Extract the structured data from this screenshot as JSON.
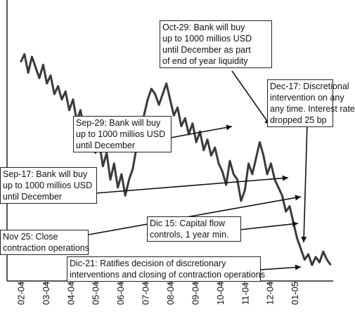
{
  "chart_data": {
    "type": "line",
    "title": "",
    "xlabel": "",
    "ylabel": "",
    "grid": false,
    "x_ticks": [
      "02-04",
      "03-04",
      "04-04",
      "05-04",
      "06-04",
      "07-04",
      "08-04",
      "09-04",
      "10-04",
      "11-04",
      "12-04",
      "01-05"
    ],
    "series": [
      {
        "color": "#3a3a3a",
        "x": [
          0,
          0.15,
          0.3,
          0.45,
          0.6,
          0.75,
          0.9,
          1.05,
          1.2,
          1.35,
          1.5,
          1.65,
          1.8,
          1.95,
          2.1,
          2.25,
          2.4,
          2.55,
          2.7,
          2.85,
          3.0,
          3.15,
          3.3,
          3.45,
          3.6,
          3.75,
          3.9,
          4.05,
          4.2,
          4.35,
          4.5,
          4.65,
          4.8,
          4.95,
          5.1,
          5.25,
          5.4,
          5.55,
          5.7,
          5.85,
          6.0,
          6.15,
          6.3,
          6.45,
          6.6,
          6.75,
          6.9,
          7.05,
          7.2,
          7.35,
          7.5,
          7.65,
          7.8,
          7.95,
          8.1,
          8.25,
          8.4,
          8.55,
          8.7,
          8.85,
          9.0,
          9.15,
          9.3,
          9.45,
          9.6,
          9.75,
          9.9,
          10.05,
          10.2,
          10.35,
          10.5,
          10.65,
          10.8,
          10.95,
          11.1,
          11.25,
          11.4,
          11.55,
          11.7,
          11.85,
          12.0,
          12.15,
          12.3,
          12.45
        ],
        "y": [
          82,
          85,
          78,
          84,
          80,
          76,
          81,
          74,
          77,
          70,
          73,
          68,
          71,
          64,
          68,
          60,
          64,
          57,
          52,
          58,
          48,
          52,
          43,
          48,
          38,
          44,
          35,
          40,
          32,
          38,
          42,
          50,
          56,
          62,
          68,
          72,
          70,
          66,
          70,
          74,
          68,
          62,
          65,
          58,
          61,
          55,
          59,
          52,
          56,
          49,
          53,
          47,
          50,
          44,
          41,
          36,
          45,
          40,
          38,
          30,
          34,
          44,
          40,
          46,
          52,
          47,
          40,
          44,
          38,
          35,
          32,
          26,
          28,
          22,
          16,
          12,
          8,
          10,
          6,
          9,
          7,
          11,
          8,
          6
        ]
      }
    ],
    "annotations": [
      {
        "lines": [
          "Oct-29: Bank will buy",
          "up to 1000 millios USD",
          "until December as part",
          "of end of year liquidity"
        ]
      },
      {
        "lines": [
          "Dec-17: Discretional",
          "intervention on any",
          "any time. Interest rate",
          "dropped   25 bp"
        ]
      },
      {
        "lines": [
          "Sep-29: Bank will buy",
          "up to 1000 millios USD",
          "until December"
        ]
      },
      {
        "lines": [
          "Sep-17: Bank will buy",
          "up to 1000 millios USD",
          "until December"
        ]
      },
      {
        "lines": [
          "Dic 15: Capital flow",
          "controls, 1 year min."
        ]
      },
      {
        "lines": [
          "Nov 25: Close",
          "contraction operations"
        ]
      },
      {
        "lines": [
          "Dic-21: Ratifies decision of discretionary",
          "interventions and closing of contraction operations"
        ]
      }
    ]
  }
}
